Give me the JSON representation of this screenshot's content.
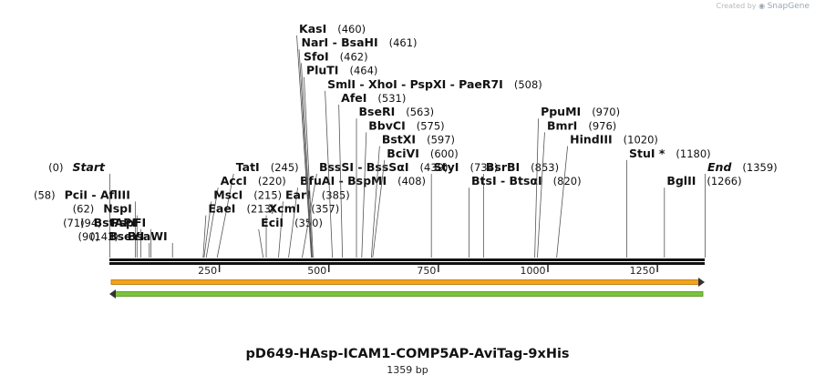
{
  "header": {
    "credit_prefix": "Created by",
    "credit_brand": "SnapGene"
  },
  "plasmid": {
    "name": "pD649-HAsp-ICAM1-COMP5AP-AviTag-9xHis",
    "size_label": "1359 bp",
    "length": 1359
  },
  "axis": {
    "ticks": [
      250,
      500,
      750,
      1000,
      1250
    ]
  },
  "colors": {
    "feature_orange": "#f5a31a",
    "feature_green": "#7cc33a",
    "tick": "#222222"
  },
  "labels": [
    {
      "name": "Start",
      "pos": 0,
      "loc": "(0)",
      "side": "left",
      "italic": true
    },
    {
      "name": "PciI  -  AflIII",
      "pos": 58,
      "loc": "(58)",
      "side": "left"
    },
    {
      "name": "NspI",
      "pos": 62,
      "loc": "(62)",
      "side": "left"
    },
    {
      "name": "BstAPI",
      "pos": 71,
      "loc": "(71)",
      "side": "left"
    },
    {
      "name": "BseYI",
      "pos": 90,
      "loc": "(90)",
      "side": "left"
    },
    {
      "name": "PspFI",
      "pos": 94,
      "loc": "(94)",
      "side": "left"
    },
    {
      "name": "BsaWI",
      "pos": 143,
      "loc": "(143)",
      "side": "left"
    },
    {
      "name": "TatI",
      "pos": 245,
      "loc": "(245)",
      "side": "right"
    },
    {
      "name": "AccI",
      "pos": 220,
      "loc": "(220)",
      "side": "right"
    },
    {
      "name": "MscI",
      "pos": 215,
      "loc": "(215)",
      "side": "right"
    },
    {
      "name": "EaeI",
      "pos": 213,
      "loc": "(213)",
      "side": "right"
    },
    {
      "name": "BssSI  -  BssSαI",
      "pos": 439,
      "loc": "(439)",
      "side": "right"
    },
    {
      "name": "BfuAI  -  BspMI",
      "pos": 408,
      "loc": "(408)",
      "side": "right"
    },
    {
      "name": "EarI",
      "pos": 385,
      "loc": "(385)",
      "side": "right"
    },
    {
      "name": "XcmI",
      "pos": 357,
      "loc": "(357)",
      "side": "right"
    },
    {
      "name": "EciI",
      "pos": 350,
      "loc": "(350)",
      "side": "right"
    },
    {
      "name": "BciVI",
      "pos": 600,
      "loc": "(600)",
      "side": "right"
    },
    {
      "name": "BstXI",
      "pos": 597,
      "loc": "(597)",
      "side": "right"
    },
    {
      "name": "BbvCI",
      "pos": 575,
      "loc": "(575)",
      "side": "right"
    },
    {
      "name": "BseRI",
      "pos": 563,
      "loc": "(563)",
      "side": "right"
    },
    {
      "name": "AfeI",
      "pos": 531,
      "loc": "(531)",
      "side": "right"
    },
    {
      "name": "SmlI  -  XhoI  -  PspXI  -  PaeR7I",
      "pos": 508,
      "loc": "(508)",
      "side": "right"
    },
    {
      "name": "PluTI",
      "pos": 464,
      "loc": "(464)",
      "side": "right"
    },
    {
      "name": "SfoI",
      "pos": 462,
      "loc": "(462)",
      "side": "right"
    },
    {
      "name": "NarI  -  BsaHI",
      "pos": 461,
      "loc": "(461)",
      "side": "right"
    },
    {
      "name": "KasI",
      "pos": 460,
      "loc": "(460)",
      "side": "right"
    },
    {
      "name": "StyI",
      "pos": 734,
      "loc": "(734)",
      "side": "right"
    },
    {
      "name": "BsrBI",
      "pos": 853,
      "loc": "(853)",
      "side": "right"
    },
    {
      "name": "BtsI  -  BtsαI",
      "pos": 820,
      "loc": "(820)",
      "side": "right"
    },
    {
      "name": "HindIII",
      "pos": 1020,
      "loc": "(1020)",
      "side": "right"
    },
    {
      "name": "BmrI",
      "pos": 976,
      "loc": "(976)",
      "side": "right"
    },
    {
      "name": "PpuMI",
      "pos": 970,
      "loc": "(970)",
      "side": "right"
    },
    {
      "name": "StuI *",
      "pos": 1180,
      "loc": "(1180)",
      "side": "right"
    },
    {
      "name": "BglII",
      "pos": 1266,
      "loc": "(1266)",
      "side": "right"
    },
    {
      "name": "End",
      "pos": 1359,
      "loc": "(1359)",
      "side": "right",
      "italic": true
    }
  ]
}
